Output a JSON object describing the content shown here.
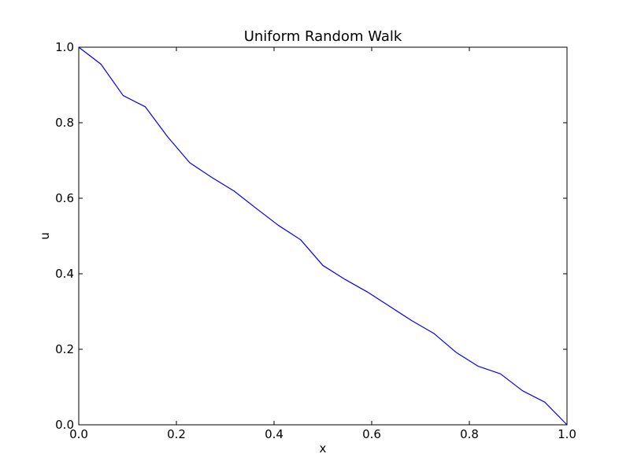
{
  "chart_data": {
    "type": "line",
    "title": "Uniform Random Walk",
    "xlabel": "x",
    "ylabel": "u",
    "xlim": [
      0,
      1
    ],
    "ylim": [
      0,
      1
    ],
    "grid": false,
    "x_ticks": [
      "0.0",
      "0.2",
      "0.4",
      "0.6",
      "0.8",
      "1.0"
    ],
    "y_ticks": [
      "0.0",
      "0.2",
      "0.4",
      "0.6",
      "0.8",
      "1.0"
    ],
    "series": [
      {
        "color": "#0000ff",
        "x": [
          0.0,
          0.0455,
          0.0909,
          0.1364,
          0.1818,
          0.2273,
          0.2727,
          0.3182,
          0.3636,
          0.4091,
          0.4545,
          0.5,
          0.5455,
          0.5909,
          0.6364,
          0.6818,
          0.7273,
          0.7727,
          0.8182,
          0.8636,
          0.9091,
          0.9545,
          1.0
        ],
        "y": [
          1.0,
          0.955,
          0.872,
          0.842,
          0.763,
          0.694,
          0.655,
          0.619,
          0.573,
          0.528,
          0.49,
          0.422,
          0.385,
          0.352,
          0.314,
          0.276,
          0.242,
          0.192,
          0.155,
          0.135,
          0.09,
          0.06,
          0.0
        ]
      }
    ]
  }
}
